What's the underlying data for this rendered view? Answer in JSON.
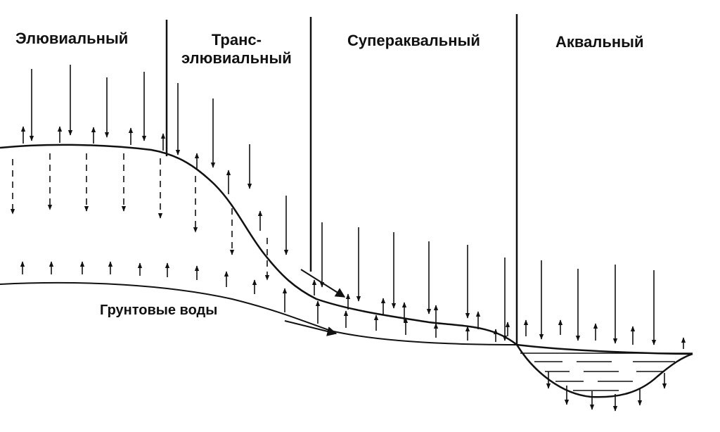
{
  "zones": [
    {
      "id": "eluvial",
      "lines": [
        "Элювиальный"
      ]
    },
    {
      "id": "trans-eluvial",
      "lines": [
        "Транс-",
        "элювиальный"
      ]
    },
    {
      "id": "superaqual",
      "lines": [
        "Супераквальный"
      ]
    },
    {
      "id": "aqual",
      "lines": [
        "Аквальный"
      ]
    }
  ],
  "groundwater_label": "Грунтовые воды",
  "colors": {
    "ink": "#111111",
    "background": "#ffffff"
  }
}
